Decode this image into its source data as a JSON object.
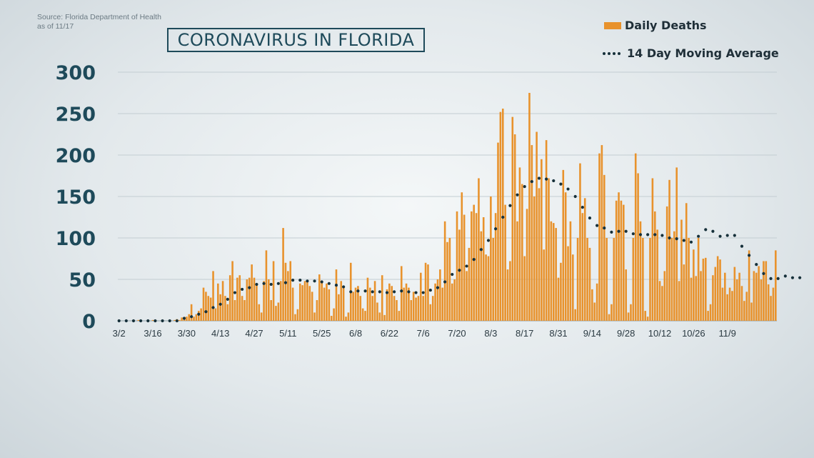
{
  "source": {
    "line1": "Source: Florida Department of Health",
    "line2": "as of 11/17"
  },
  "chart_data": {
    "type": "bar",
    "title": "CORONAVIRUS IN FLORIDA",
    "xlabel": "",
    "ylabel": "",
    "ylim": [
      0,
      300
    ],
    "yticks": [
      0,
      50,
      100,
      150,
      200,
      250,
      300
    ],
    "x_tick_labels": [
      "3/2",
      "3/16",
      "3/30",
      "4/13",
      "4/27",
      "5/11",
      "5/25",
      "6/8",
      "6/22",
      "7/6",
      "7/20",
      "8/3",
      "8/17",
      "8/31",
      "9/14",
      "9/28",
      "10/12",
      "10/26",
      "11/9"
    ],
    "legend_placement": "top-right",
    "grid": true,
    "colors": {
      "bars": "#e8922c",
      "line": "#16303a",
      "title": "#1e4a5a"
    },
    "series": [
      {
        "name": "Daily Deaths",
        "type": "bar",
        "values": [
          0,
          0,
          0,
          0,
          0,
          0,
          0,
          0,
          1,
          0,
          0,
          0,
          0,
          0,
          1,
          1,
          0,
          0,
          1,
          0,
          0,
          1,
          0,
          1,
          2,
          1,
          4,
          3,
          5,
          8,
          20,
          5,
          8,
          12,
          15,
          40,
          35,
          30,
          28,
          60,
          15,
          45,
          32,
          48,
          30,
          20,
          55,
          72,
          25,
          52,
          55,
          30,
          25,
          50,
          52,
          68,
          52,
          45,
          20,
          10,
          48,
          85,
          50,
          25,
          72,
          18,
          22,
          48,
          112,
          70,
          60,
          72,
          40,
          8,
          14,
          45,
          43,
          48,
          48,
          42,
          35,
          10,
          25,
          56,
          48,
          40,
          45,
          38,
          6,
          15,
          62,
          32,
          48,
          40,
          5,
          10,
          70,
          35,
          40,
          42,
          30,
          15,
          12,
          52,
          40,
          30,
          48,
          22,
          10,
          55,
          7,
          38,
          45,
          42,
          30,
          25,
          12,
          66,
          40,
          45,
          40,
          25,
          35,
          28,
          30,
          58,
          30,
          70,
          68,
          20,
          30,
          45,
          50,
          62,
          40,
          120,
          95,
          100,
          45,
          50,
          132,
          110,
          155,
          128,
          60,
          88,
          132,
          140,
          130,
          172,
          108,
          125,
          80,
          78,
          150,
          100,
          130,
          215,
          252,
          256,
          140,
          62,
          72,
          246,
          225,
          120,
          185,
          165,
          78,
          135,
          275,
          212,
          150,
          228,
          160,
          195,
          86,
          218,
          172,
          120,
          118,
          112,
          52,
          70,
          182,
          155,
          90,
          120,
          80,
          14,
          100,
          190,
          130,
          148,
          100,
          88,
          38,
          22,
          45,
          202,
          212,
          176,
          100,
          8,
          20,
          100,
          145,
          155,
          145,
          140,
          62,
          10,
          20,
          100,
          202,
          178,
          120,
          100,
          12,
          5,
          100,
          172,
          132,
          110,
          48,
          42,
          60,
          138,
          170,
          100,
          108,
          185,
          48,
          122,
          68,
          142,
          100,
          52,
          86,
          54,
          100,
          60,
          75,
          76,
          12,
          20,
          55,
          65,
          78,
          74,
          40,
          58,
          32,
          40,
          36,
          65,
          50,
          58,
          42,
          24,
          35,
          85,
          22,
          60,
          58,
          66,
          50,
          72,
          72,
          44,
          30,
          40,
          85
        ]
      },
      {
        "name": "14 Day Moving Average",
        "type": "line",
        "values": [
          0,
          0,
          0,
          0,
          0,
          0,
          0,
          0,
          0,
          0,
          0,
          0,
          0,
          0,
          0,
          0,
          0,
          0,
          0,
          0,
          0,
          0,
          0,
          0,
          0,
          0,
          2,
          3,
          4,
          4,
          5,
          6,
          7,
          8,
          8,
          10,
          11,
          13,
          15,
          16,
          17,
          19,
          20,
          22,
          24,
          26,
          28,
          31,
          34,
          36,
          37,
          38,
          39,
          39,
          40,
          42,
          43,
          44,
          45,
          46,
          45,
          44,
          44,
          44,
          45,
          45,
          45,
          45,
          46,
          46,
          47,
          48,
          49,
          49,
          49,
          49,
          49,
          48,
          48,
          48,
          48,
          48,
          47,
          47,
          47,
          46,
          46,
          45,
          44,
          43,
          43,
          43,
          42,
          41,
          38,
          36,
          35,
          35,
          36,
          36,
          36,
          36,
          36,
          36,
          35,
          35,
          35,
          35,
          35,
          35,
          35,
          34,
          34,
          34,
          35,
          36,
          36,
          36,
          36,
          36,
          35,
          35,
          34,
          34,
          34,
          34,
          34,
          35,
          36,
          37,
          38,
          38,
          40,
          42,
          44,
          47,
          51,
          54,
          56,
          58,
          60,
          61,
          62,
          64,
          66,
          68,
          70,
          74,
          78,
          82,
          86,
          90,
          94,
          97,
          101,
          106,
          111,
          116,
          121,
          125,
          130,
          134,
          139,
          143,
          148,
          152,
          156,
          159,
          162,
          163,
          166,
          168,
          170,
          171,
          172,
          172,
          172,
          171,
          171,
          170,
          169,
          168,
          167,
          165,
          163,
          161,
          159,
          156,
          153,
          150,
          146,
          141,
          137,
          133,
          128,
          124,
          120,
          117,
          115,
          114,
          113,
          112,
          110,
          108,
          107,
          106,
          107,
          108,
          109,
          109,
          108,
          107,
          106,
          105,
          104,
          104,
          104,
          104,
          104,
          104,
          104,
          104,
          104,
          104,
          104,
          103,
          102,
          101,
          100,
          100,
          100,
          99,
          99,
          98,
          97,
          96,
          95,
          95,
          96,
          98,
          102,
          106,
          109,
          110,
          110,
          109,
          108,
          105,
          102,
          102,
          102,
          103,
          103,
          104,
          104,
          103,
          100,
          95,
          90,
          86,
          82,
          79,
          76,
          72,
          68,
          64,
          60,
          57,
          55,
          53,
          51,
          50,
          50,
          51,
          52,
          53,
          54,
          54,
          53,
          52,
          52,
          52,
          52,
          52
        ]
      }
    ]
  }
}
